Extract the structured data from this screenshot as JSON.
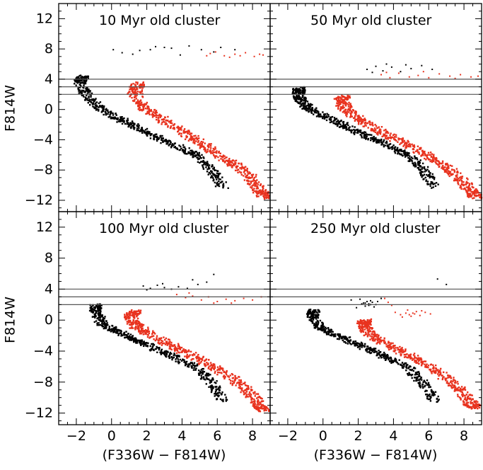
{
  "figure": {
    "xlabel": "(F336W − F814W)",
    "ylabel": "F814W",
    "colors": {
      "black_population": "#000000",
      "red_population": "#e8321e",
      "reference_lines": "#555555"
    }
  },
  "chart_data": [
    {
      "type": "scatter",
      "title": "10 Myr old cluster",
      "xlabel": "",
      "ylabel": "F814W",
      "xlim": [
        -3,
        9
      ],
      "ylim": [
        -13.5,
        14
      ],
      "xticks": [],
      "yticks": [
        "12",
        "8",
        "4",
        "0",
        "-4",
        "-8",
        "-12"
      ],
      "hlines": [
        4,
        3,
        2
      ],
      "series": [
        {
          "name": "black",
          "color": "#000000",
          "sequence": [
            [
              -1.6,
              4.4
            ],
            [
              -1.8,
              3.7
            ],
            [
              -1.5,
              2.2
            ],
            [
              -0.8,
              0.4
            ],
            [
              0.3,
              -1.1
            ],
            [
              1.3,
              -2.2
            ],
            [
              2.3,
              -3.4
            ],
            [
              3.5,
              -4.6
            ],
            [
              4.8,
              -6.0
            ],
            [
              5.7,
              -8.0
            ],
            [
              6.3,
              -10.2
            ]
          ],
          "width": 0.7,
          "sparse": [
            [
              0.1,
              7.9
            ],
            [
              1.6,
              7.8
            ],
            [
              2.5,
              8.3
            ],
            [
              3.0,
              8.2
            ],
            [
              3.4,
              8.1
            ],
            [
              0.6,
              7.5
            ],
            [
              3.9,
              7.2
            ],
            [
              5.1,
              7.9
            ],
            [
              6.2,
              8.2
            ],
            [
              7.0,
              7.9
            ],
            [
              4.4,
              8.4
            ],
            [
              1.2,
              7.3
            ],
            [
              2.2,
              7.9
            ],
            [
              5.8,
              7.6
            ]
          ]
        },
        {
          "name": "red",
          "color": "#e8321e",
          "sequence": [
            [
              1.5,
              3.4
            ],
            [
              1.3,
              2.2
            ],
            [
              1.8,
              0.3
            ],
            [
              2.8,
              -1.2
            ],
            [
              3.9,
              -2.8
            ],
            [
              5.0,
              -4.3
            ],
            [
              5.9,
              -5.8
            ],
            [
              7.0,
              -7.3
            ],
            [
              7.9,
              -9.0
            ],
            [
              8.4,
              -10.7
            ],
            [
              8.7,
              -11.6
            ]
          ],
          "width": 0.8,
          "sparse": [
            [
              5.4,
              7.1
            ],
            [
              5.9,
              7.6
            ],
            [
              6.4,
              7.1
            ],
            [
              7.0,
              7.3
            ],
            [
              7.6,
              7.5
            ],
            [
              8.1,
              7.0
            ],
            [
              8.4,
              7.3
            ],
            [
              6.7,
              6.9
            ],
            [
              5.6,
              7.4
            ],
            [
              7.3,
              7.1
            ],
            [
              8.6,
              7.2
            ]
          ]
        }
      ]
    },
    {
      "type": "scatter",
      "title": "50 Myr old cluster",
      "xlabel": "",
      "ylabel": "",
      "xlim": [
        -3,
        9
      ],
      "ylim": [
        -13.5,
        14
      ],
      "xticks": [],
      "yticks": [],
      "hlines": [
        4,
        3,
        2
      ],
      "series": [
        {
          "name": "black",
          "color": "#000000",
          "sequence": [
            [
              -1.3,
              2.8
            ],
            [
              -1.4,
              2.3
            ],
            [
              -1.3,
              1.3
            ],
            [
              -0.8,
              0.1
            ],
            [
              0.3,
              -1.1
            ],
            [
              1.3,
              -2.2
            ],
            [
              2.3,
              -3.4
            ],
            [
              3.5,
              -4.6
            ],
            [
              4.8,
              -6.0
            ],
            [
              5.7,
              -8.0
            ],
            [
              6.3,
              -10.2
            ]
          ],
          "width": 0.7,
          "sparse": [
            [
              2.5,
              5.3
            ],
            [
              3.0,
              5.7
            ],
            [
              3.4,
              5.1
            ],
            [
              3.9,
              5.6
            ],
            [
              4.4,
              5.0
            ],
            [
              5.0,
              5.4
            ],
            [
              5.6,
              5.8
            ],
            [
              6.2,
              5.3
            ],
            [
              2.8,
              4.9
            ],
            [
              4.7,
              5.9
            ],
            [
              3.6,
              6.0
            ]
          ]
        },
        {
          "name": "red",
          "color": "#e8321e",
          "sequence": [
            [
              1.3,
              1.7
            ],
            [
              1.0,
              1.1
            ],
            [
              1.4,
              -0.2
            ],
            [
              2.2,
              -1.5
            ],
            [
              3.3,
              -3.0
            ],
            [
              4.6,
              -4.4
            ],
            [
              5.8,
              -5.9
            ],
            [
              6.9,
              -7.4
            ],
            [
              7.8,
              -9.2
            ],
            [
              8.4,
              -10.8
            ],
            [
              8.7,
              -11.6
            ]
          ],
          "width": 0.8,
          "sparse": [
            [
              3.3,
              4.6
            ],
            [
              3.8,
              4.2
            ],
            [
              4.3,
              4.8
            ],
            [
              4.9,
              4.3
            ],
            [
              5.4,
              4.5
            ],
            [
              6.0,
              4.2
            ],
            [
              6.6,
              4.7
            ],
            [
              7.2,
              4.4
            ],
            [
              7.8,
              4.6
            ],
            [
              8.4,
              4.3
            ],
            [
              3.6,
              4.9
            ],
            [
              5.7,
              5.0
            ],
            [
              7.5,
              4.1
            ],
            [
              8.8,
              4.4
            ]
          ]
        }
      ]
    },
    {
      "type": "scatter",
      "title": "100 Myr old cluster",
      "xlabel": "(F336W − F814W)",
      "ylabel": "F814W",
      "xlim": [
        -3,
        9
      ],
      "ylim": [
        -13.5,
        14
      ],
      "xticks": [
        "-2",
        "0",
        "2",
        "4",
        "6",
        "8"
      ],
      "yticks": [
        "12",
        "8",
        "4",
        "0",
        "-4",
        "-8",
        "-12"
      ],
      "hlines": [
        4,
        3,
        2
      ],
      "series": [
        {
          "name": "black",
          "color": "#000000",
          "sequence": [
            [
              -0.9,
              1.9
            ],
            [
              -0.9,
              1.1
            ],
            [
              -0.5,
              -0.5
            ],
            [
              0.3,
              -1.5
            ],
            [
              1.3,
              -2.5
            ],
            [
              2.3,
              -3.5
            ],
            [
              3.5,
              -4.7
            ],
            [
              4.8,
              -6.1
            ],
            [
              5.7,
              -8.1
            ],
            [
              6.3,
              -10.3
            ]
          ],
          "width": 0.7,
          "sparse": [
            [
              1.8,
              4.4
            ],
            [
              2.2,
              4.1
            ],
            [
              2.6,
              4.5
            ],
            [
              3.0,
              4.2
            ],
            [
              3.4,
              4.0
            ],
            [
              3.8,
              4.3
            ],
            [
              4.3,
              4.1
            ],
            [
              4.9,
              4.6
            ],
            [
              5.4,
              4.9
            ],
            [
              5.8,
              5.9
            ],
            [
              2.0,
              3.9
            ],
            [
              2.9,
              4.7
            ],
            [
              4.6,
              5.2
            ]
          ]
        },
        {
          "name": "red",
          "color": "#e8321e",
          "sequence": [
            [
              1.3,
              1.1
            ],
            [
              1.1,
              0.4
            ],
            [
              1.4,
              -0.8
            ],
            [
              2.3,
              -2.0
            ],
            [
              3.4,
              -3.3
            ],
            [
              4.6,
              -4.6
            ],
            [
              5.8,
              -6.1
            ],
            [
              6.9,
              -7.6
            ],
            [
              7.8,
              -9.3
            ],
            [
              8.4,
              -10.9
            ],
            [
              8.6,
              -11.6
            ]
          ],
          "width": 0.8,
          "sparse": [
            [
              3.7,
              3.3
            ],
            [
              4.2,
              2.9
            ],
            [
              4.6,
              3.1
            ],
            [
              5.1,
              2.6
            ],
            [
              5.5,
              3.0
            ],
            [
              6.0,
              2.4
            ],
            [
              6.5,
              2.7
            ],
            [
              7.0,
              2.5
            ],
            [
              7.5,
              2.8
            ],
            [
              8.0,
              2.6
            ],
            [
              8.5,
              3.0
            ],
            [
              4.4,
              3.5
            ],
            [
              5.8,
              2.2
            ],
            [
              6.8,
              2.2
            ]
          ]
        }
      ]
    },
    {
      "type": "scatter",
      "title": "250 Myr old cluster",
      "xlabel": "(F336W − F814W)",
      "ylabel": "",
      "xlim": [
        -3,
        9
      ],
      "ylim": [
        -13.5,
        14
      ],
      "xticks": [
        "-2",
        "0",
        "2",
        "4",
        "6",
        "8"
      ],
      "yticks": [],
      "hlines": [
        4,
        3,
        2
      ],
      "series": [
        {
          "name": "black",
          "color": "#000000",
          "sequence": [
            [
              -0.5,
              1.3
            ],
            [
              -0.6,
              0.6
            ],
            [
              -0.3,
              -0.7
            ],
            [
              0.5,
              -1.7
            ],
            [
              1.5,
              -2.7
            ],
            [
              2.5,
              -3.7
            ],
            [
              3.6,
              -4.8
            ],
            [
              4.9,
              -6.2
            ],
            [
              5.7,
              -8.2
            ],
            [
              6.3,
              -10.4
            ]
          ],
          "width": 0.7,
          "sparse": [
            [
              2.4,
              2.2
            ],
            [
              2.6,
              1.9
            ],
            [
              2.8,
              2.3
            ],
            [
              3.0,
              2.0
            ],
            [
              2.2,
              2.1
            ],
            [
              2.7,
              2.5
            ],
            [
              2.9,
              1.7
            ],
            [
              2.5,
              2.4
            ],
            [
              1.6,
              2.6
            ],
            [
              1.9,
              1.6
            ],
            [
              3.3,
              2.8
            ],
            [
              2.1,
              2.7
            ],
            [
              6.5,
              5.3
            ],
            [
              7.0,
              4.6
            ],
            [
              2.6,
              2.1
            ],
            [
              2.7,
              2.0
            ],
            [
              2.4,
              1.8
            ],
            [
              3.1,
              2.4
            ],
            [
              2.3,
              2.2
            ]
          ]
        },
        {
          "name": "red",
          "color": "#e8321e",
          "sequence": [
            [
              2.4,
              0.0
            ],
            [
              2.3,
              -0.6
            ],
            [
              2.6,
              -1.7
            ],
            [
              3.5,
              -3.0
            ],
            [
              4.6,
              -4.2
            ],
            [
              5.7,
              -5.6
            ],
            [
              6.8,
              -7.1
            ],
            [
              7.7,
              -8.8
            ],
            [
              8.3,
              -10.5
            ],
            [
              8.6,
              -11.4
            ]
          ],
          "width": 0.8,
          "sparse": [
            [
              4.1,
              1.0
            ],
            [
              4.4,
              0.7
            ],
            [
              4.7,
              0.9
            ],
            [
              5.0,
              0.5
            ],
            [
              5.2,
              0.8
            ],
            [
              5.5,
              0.6
            ],
            [
              5.8,
              1.0
            ],
            [
              6.1,
              0.8
            ],
            [
              4.8,
              1.3
            ],
            [
              5.3,
              1.1
            ],
            [
              4.5,
              0.4
            ],
            [
              3.5,
              2.8
            ],
            [
              3.9,
              1.9
            ],
            [
              3.7,
              2.3
            ],
            [
              4.9,
              0.7
            ],
            [
              5.1,
              0.9
            ],
            [
              5.6,
              1.2
            ]
          ]
        }
      ]
    }
  ]
}
